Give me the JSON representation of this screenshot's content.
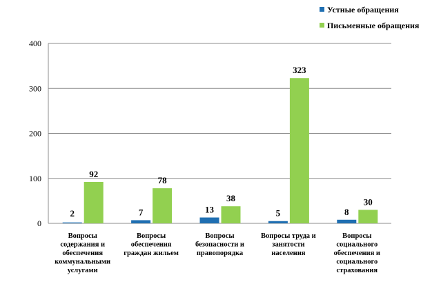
{
  "chart_data": {
    "type": "bar",
    "categories": [
      [
        "Вопросы",
        "содержания и",
        "обеспечения",
        "коммунальными",
        "услугами"
      ],
      [
        "Вопросы",
        "обеспечения",
        "граждан жильем"
      ],
      [
        "Вопросы",
        "безопасности и",
        "правопорядка"
      ],
      [
        "Вопросы труда и",
        "занятости",
        "населения"
      ],
      [
        "Вопросы",
        "социального",
        "обеспечения и",
        "социального",
        "страхования"
      ]
    ],
    "series": [
      {
        "name": "Устные обращения",
        "values": [
          2,
          7,
          13,
          5,
          8
        ],
        "color": "#1f6fb2"
      },
      {
        "name": "Письменные обращения",
        "values": [
          92,
          78,
          38,
          323,
          30
        ],
        "color": "#92d050"
      }
    ],
    "yticks": [
      0,
      100,
      200,
      300,
      400
    ],
    "ylim": [
      0,
      400
    ],
    "grid": true,
    "legend_position": "top-right"
  }
}
